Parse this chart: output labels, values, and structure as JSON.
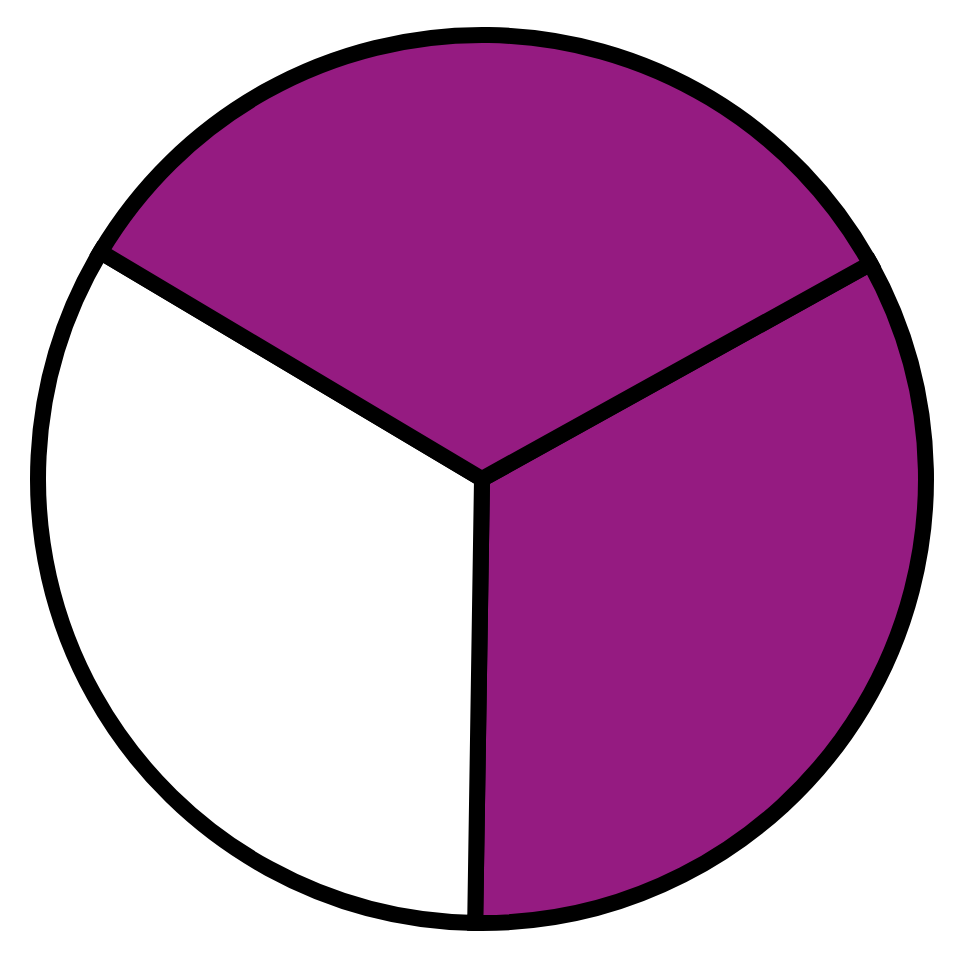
{
  "chart_data": {
    "type": "pie",
    "categories": [
      null,
      null,
      null
    ],
    "values": [
      33.3,
      33.3,
      33.4
    ],
    "colors": [
      "#951b81",
      "#ffffff",
      "#951b81"
    ]
  }
}
